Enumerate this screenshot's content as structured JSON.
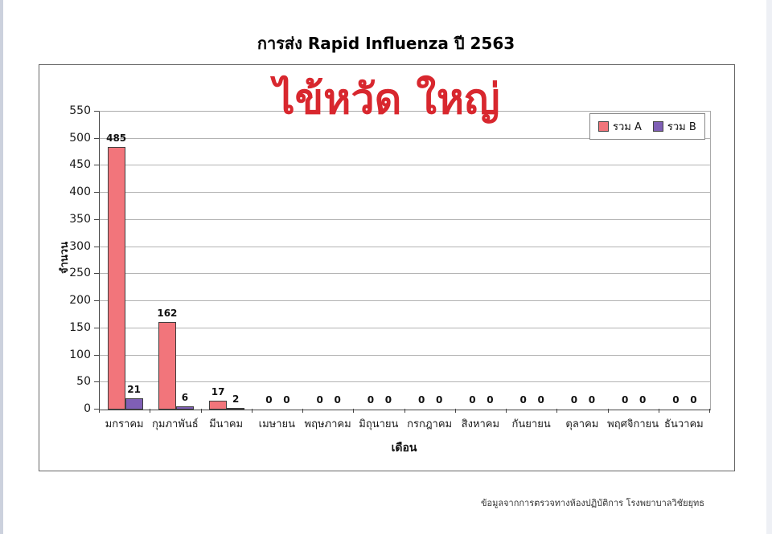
{
  "page": {
    "title": "การส่ง Rapid Influenza ปี 2563",
    "overlay_text": "ไข้หวัด ใหญ่",
    "footer": "ข้อมูลจากการตรวจทางห้องปฏิบัติการ โรงพยาบาลวิชัยยุทธ"
  },
  "chart_data": {
    "type": "bar",
    "title": "การส่ง Rapid Influenza ปี 2563",
    "annotation": "ไข้หวัด ใหญ่",
    "xlabel": "เดือน",
    "ylabel": "จำนวน",
    "ylim": [
      0,
      550
    ],
    "yticks": [
      0,
      50,
      100,
      150,
      200,
      250,
      300,
      350,
      400,
      450,
      500,
      550
    ],
    "grid": true,
    "legend_position": "top-right",
    "categories": [
      "มกราคม",
      "กุมภาพันธ์",
      "มีนาคม",
      "เมษายน",
      "พฤษภาคม",
      "มิถุนายน",
      "กรกฎาคม",
      "สิงหาคม",
      "กันยายน",
      "ตุลาคม",
      "พฤศจิกายน",
      "ธันวาคม"
    ],
    "series": [
      {
        "name": "รวม A",
        "color": "#f2757b",
        "values": [
          485,
          162,
          17,
          0,
          0,
          0,
          0,
          0,
          0,
          0,
          0,
          0
        ]
      },
      {
        "name": "รวม B",
        "color": "#7f5fb5",
        "values": [
          21,
          6,
          2,
          0,
          0,
          0,
          0,
          0,
          0,
          0,
          0,
          0
        ]
      }
    ]
  },
  "colors": {
    "overlay_red": "#d8272e",
    "series_a": "#f2757b",
    "series_b": "#7f5fb5",
    "gridline": "#b3b3b3"
  }
}
